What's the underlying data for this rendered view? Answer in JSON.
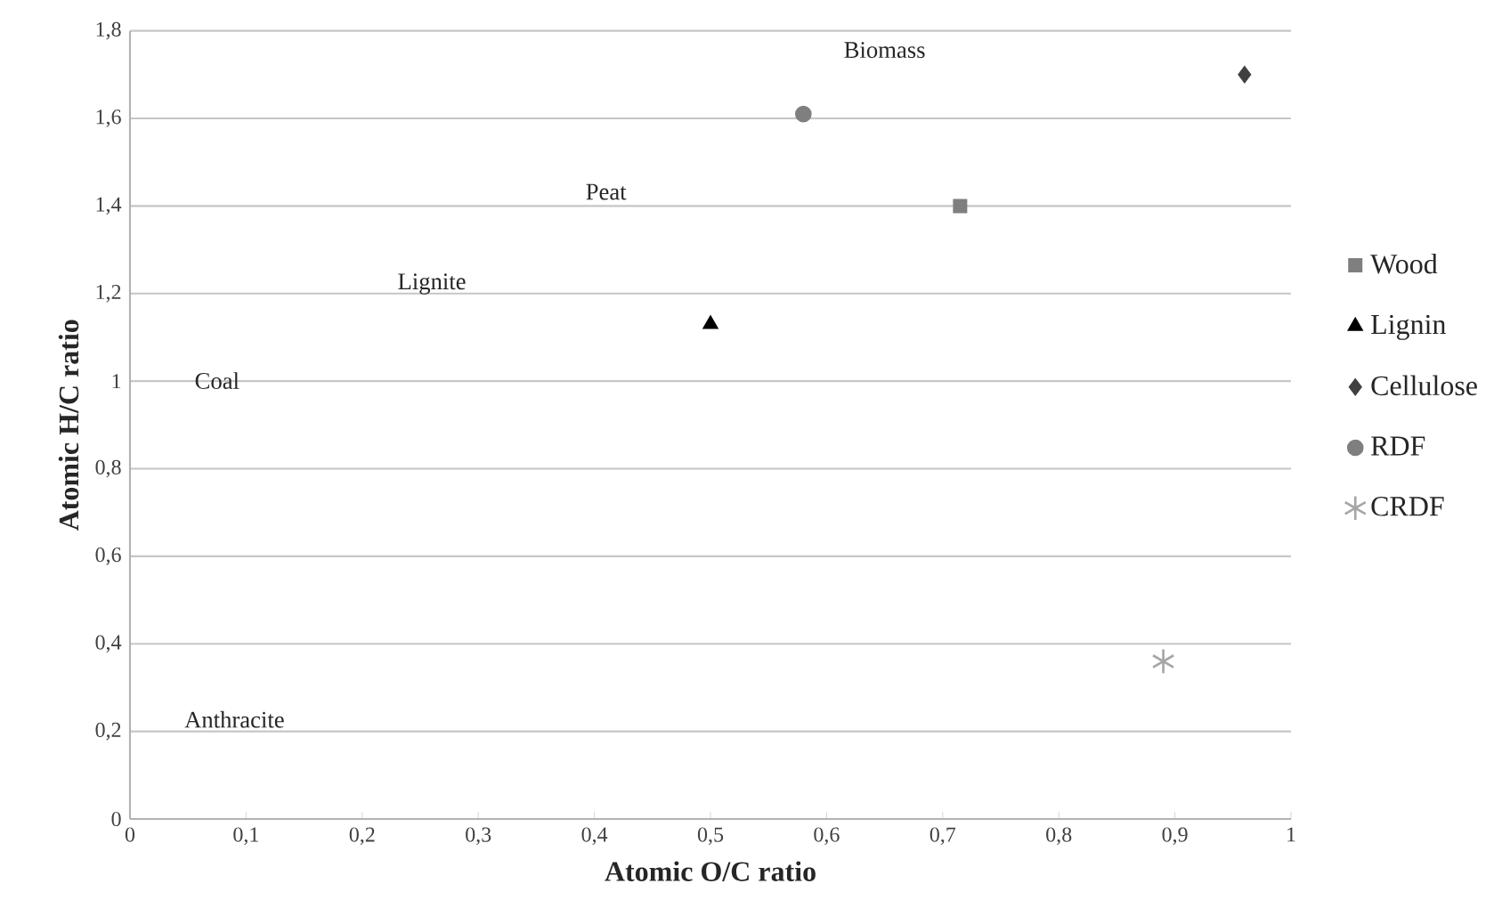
{
  "chart_data": {
    "type": "scatter",
    "xlabel": "Atomic O/C ratio",
    "ylabel": "Atomic H/C ratio",
    "xlim": [
      0,
      1
    ],
    "ylim": [
      0,
      1.8
    ],
    "xticks": [
      0,
      {
        "value": 0.1,
        "label": "0,1"
      },
      {
        "value": 0.2,
        "label": "0,2"
      },
      {
        "value": 0.3,
        "label": "0,3"
      },
      {
        "value": 0.4,
        "label": "0,4"
      },
      {
        "value": 0.5,
        "label": "0,5"
      },
      {
        "value": 0.6,
        "label": "0,6"
      },
      {
        "value": 0.7,
        "label": "0,7"
      },
      {
        "value": 0.8,
        "label": "0,8"
      },
      {
        "value": 0.9,
        "label": "0,9"
      },
      1
    ],
    "yticks": [
      0,
      {
        "value": 0.2,
        "label": "0,2"
      },
      {
        "value": 0.4,
        "label": "0,4"
      },
      {
        "value": 0.6,
        "label": "0,6"
      },
      {
        "value": 0.8,
        "label": "0,8"
      },
      1,
      {
        "value": 1.2,
        "label": "1,2"
      },
      {
        "value": 1.4,
        "label": "1,4"
      },
      {
        "value": 1.6,
        "label": "1,6"
      },
      {
        "value": 1.8,
        "label": "1,8"
      }
    ],
    "grid": "y",
    "legend": "right",
    "series": [
      {
        "name": "Wood",
        "color": "#7f7f7f",
        "marker": "square",
        "x": [
          0.715
        ],
        "values": [
          1.4
        ]
      },
      {
        "name": "Lignin",
        "color": "#000000",
        "marker": "triangle",
        "x": [
          0.5
        ],
        "values": [
          1.13
        ]
      },
      {
        "name": "Cellulose",
        "color": "#404040",
        "marker": "diamond",
        "x": [
          0.96
        ],
        "values": [
          1.7
        ]
      },
      {
        "name": "RDF",
        "color": "#7f7f7f",
        "marker": "circle",
        "x": [
          0.58
        ],
        "values": [
          1.61
        ]
      },
      {
        "name": "CRDF",
        "color": "#a6a6a6",
        "marker": "cross",
        "x": [
          0.89
        ],
        "values": [
          0.36
        ]
      }
    ],
    "annotations": [
      "Biomass",
      "Peat",
      "Lignite",
      "Coal",
      "Anthracite"
    ]
  }
}
